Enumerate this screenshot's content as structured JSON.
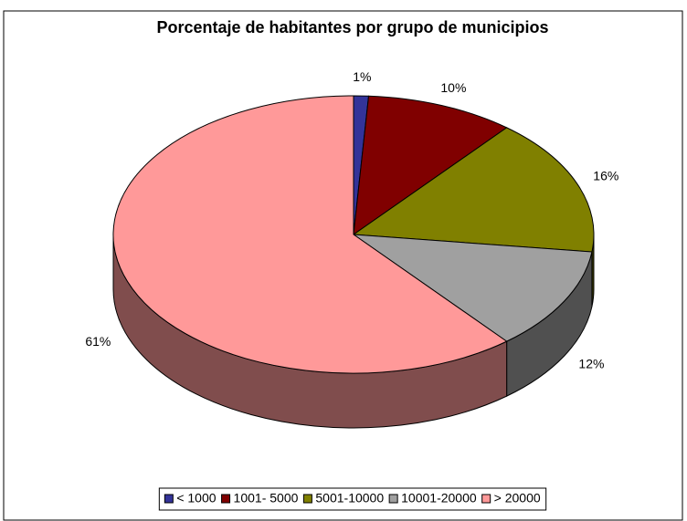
{
  "chart_data": {
    "type": "pie3d",
    "title": "Porcentaje de habitantes por grupo de municipios",
    "categories": [
      "< 1000",
      "1001- 5000",
      "5001-10000",
      "10001-20000",
      "> 20000"
    ],
    "values": [
      1,
      10,
      16,
      12,
      61
    ],
    "value_labels": [
      "1%",
      "10%",
      "16%",
      "12%",
      "61%"
    ],
    "colors": [
      "#333399",
      "#800000",
      "#808000",
      "#a0a0a0",
      "#ff9999"
    ],
    "legend": "bottom"
  }
}
